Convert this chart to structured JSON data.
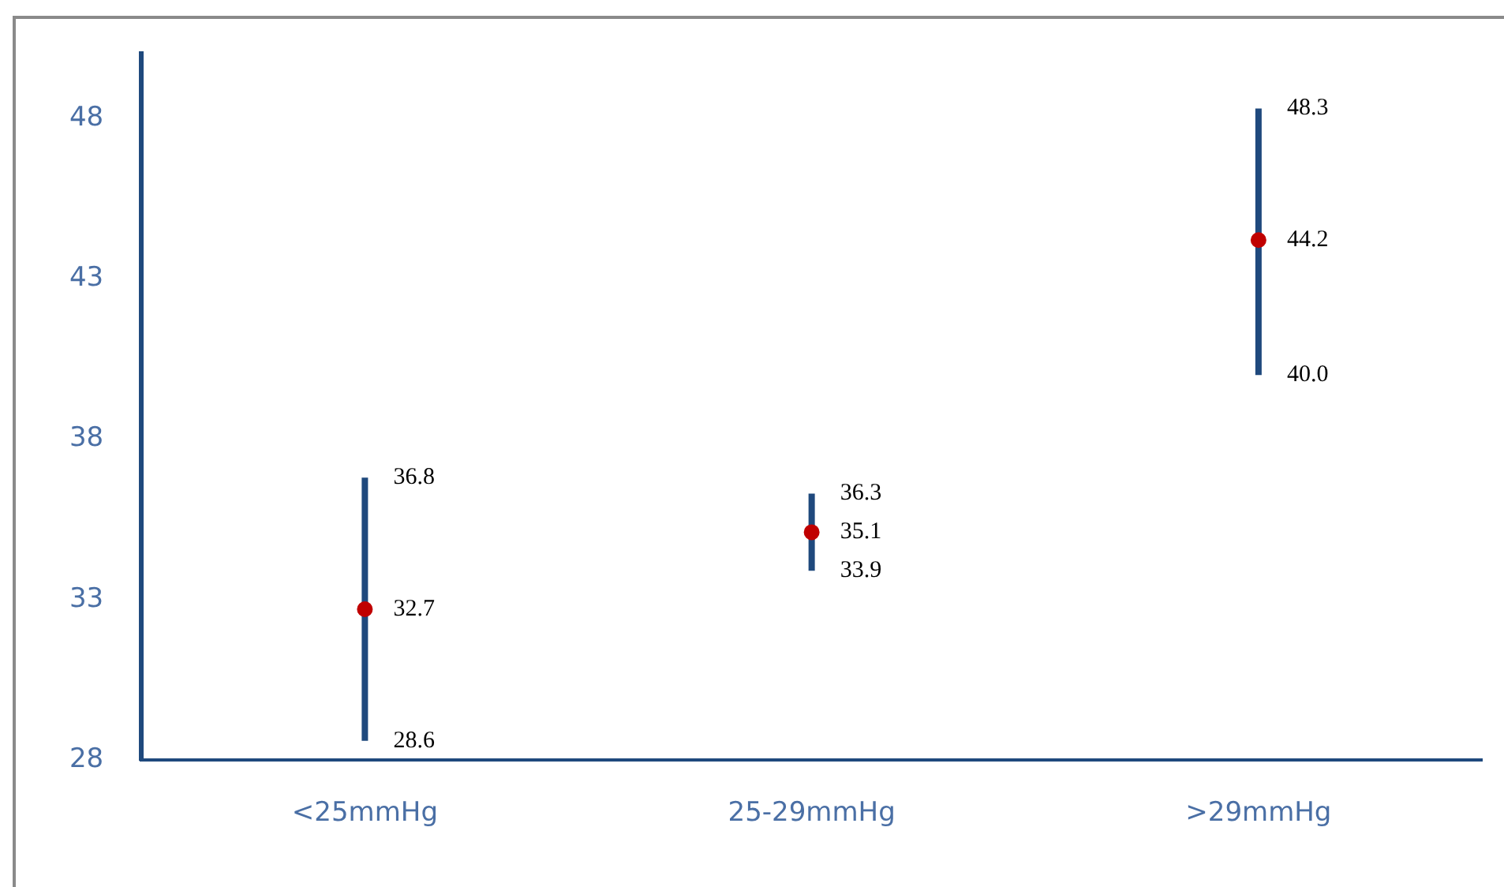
{
  "chart_data": {
    "type": "scatter",
    "categories": [
      "<25mmHg",
      "25-29mmHg",
      ">29mmHg"
    ],
    "series": [
      {
        "color": "#c00000",
        "values": [
          32.7,
          35.1,
          44.2
        ],
        "errors": [
          [
            28.6,
            36.8
          ],
          [
            33.9,
            36.3
          ],
          [
            40.0,
            48.3
          ]
        ]
      }
    ],
    "ylim": [
      28,
      50
    ],
    "yticks": [
      28,
      33,
      38,
      43,
      48
    ],
    "grid": false,
    "legend": false,
    "marker": "circle",
    "data_labels": true,
    "annotations": [
      {
        "text": "36.8",
        "x": "<25mmHg",
        "y": 36.8
      },
      {
        "text": "28.6",
        "x": "<25mmHg",
        "y": 28.6
      },
      {
        "text": "36.3",
        "x": "25-29mmHg",
        "y": 36.3
      },
      {
        "text": "33.9",
        "x": "25-29mmHg",
        "y": 33.9
      },
      {
        "text": "48.3",
        "x": ">29mmHg",
        "y": 48.3
      },
      {
        "text": "40.0",
        "x": ">29mmHg",
        "y": 40.0
      }
    ]
  }
}
